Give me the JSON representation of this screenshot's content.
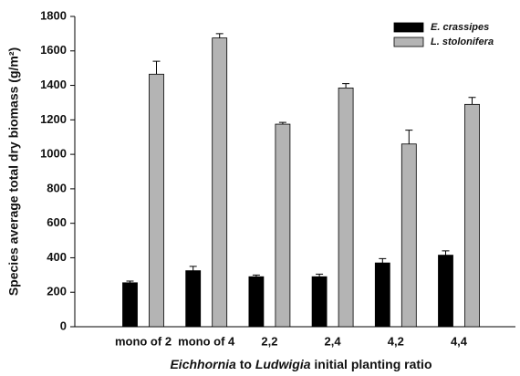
{
  "chart_data": {
    "type": "bar",
    "ylabel": "Species average total dry biomass (g/m²)",
    "xlabel_parts": [
      "Eichhornia",
      "to",
      "Ludwigia",
      "initial planting ratio"
    ],
    "categories": [
      "mono of 2",
      "mono of 4",
      "2,2",
      "2,4",
      "4,2",
      "4,4"
    ],
    "series": [
      {
        "name": "E. crassipes",
        "color": "#000000",
        "values": [
          255,
          325,
          290,
          290,
          370,
          415
        ],
        "errors": [
          10,
          25,
          10,
          15,
          25,
          25
        ]
      },
      {
        "name": "L. stolonifera",
        "color": "#b4b4b4",
        "values": [
          1465,
          1675,
          1175,
          1385,
          1060,
          1290
        ],
        "errors": [
          75,
          25,
          10,
          25,
          80,
          40
        ]
      }
    ],
    "ylim": [
      0,
      1800
    ],
    "yticks": [
      0,
      200,
      400,
      600,
      800,
      1000,
      1200,
      1400,
      1600,
      1800
    ],
    "grid": false,
    "legend": "upper right"
  }
}
